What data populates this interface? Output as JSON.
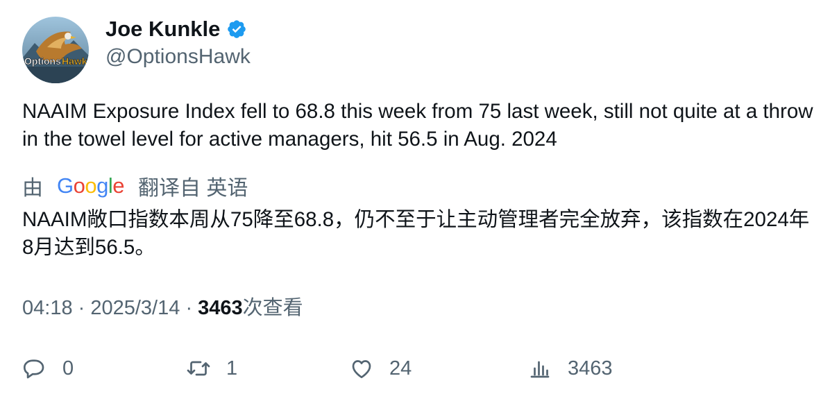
{
  "author": {
    "name": "Joe Kunkle",
    "handle": "@OptionsHawk",
    "avatar_text": "OptionsHawk",
    "verified": true
  },
  "tweet": {
    "text": "NAAIM Exposure Index fell to 68.8 this week from 75 last week, still not quite at a throw in the towel level for active managers, hit 56.5 in Aug. 2024"
  },
  "translation": {
    "prefix": "由",
    "provider": "Google",
    "suffix": "翻译自 英语",
    "text": "NAAIM敞口指数本周从75降至68.8，仍不至于让主动管理者完全放弃，该指数在2024年8月达到56.5。"
  },
  "meta": {
    "time": "04:18",
    "separator": "·",
    "date": "2025/3/14",
    "views_count": "3463",
    "views_label": "次查看"
  },
  "actions": {
    "reply_count": "0",
    "retweet_count": "1",
    "like_count": "24",
    "views_count": "3463"
  },
  "colors": {
    "text": "#0f1419",
    "secondary": "#536471",
    "verified": "#1d9bf0"
  }
}
